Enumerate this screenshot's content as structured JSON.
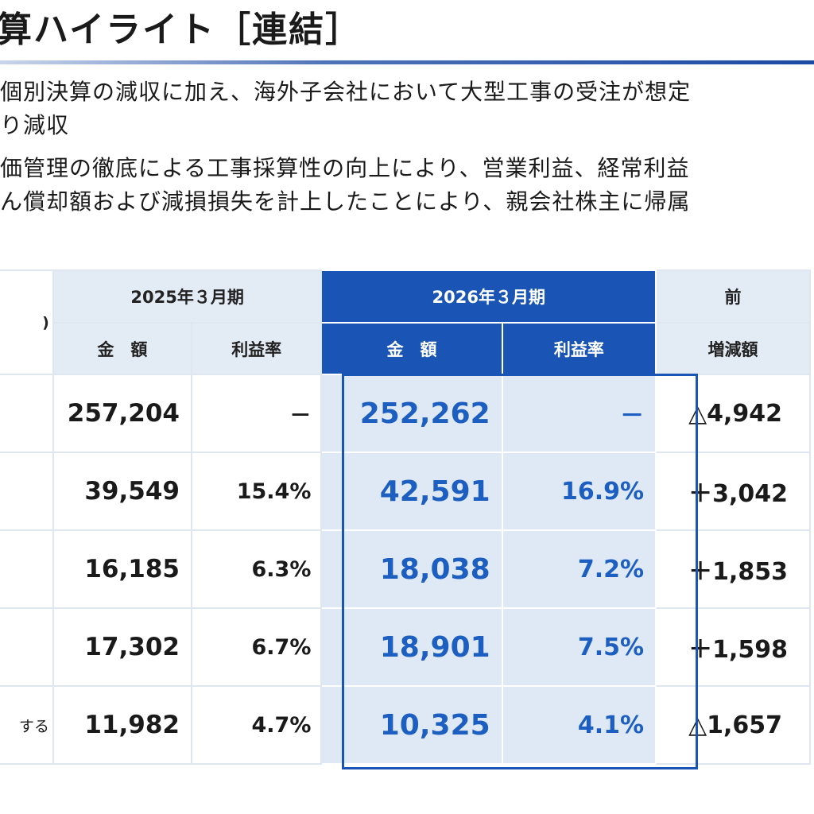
{
  "title": "算ハイライト［連結］",
  "bullets": [
    "個別決算の減収に加え、海外子会社において大型工事の受注が想定",
    "り減収",
    "価管理の徹底による工事採算性の向上により、営業利益、経常利益",
    "ん償却額および減損損失を計上したことにより、親会社株主に帰属"
  ],
  "table": {
    "headers": {
      "period_prev": "2025年３月期",
      "period_curr": "2026年３月期",
      "period_diff": "前",
      "amount": "金　額",
      "margin": "利益率",
      "amount_curr": "金　額",
      "margin_curr": "利益率",
      "change": "増減額",
      "row_label_fragment": ")"
    },
    "rows": [
      {
        "label": "",
        "prev_amount": "257,204",
        "prev_margin": "－",
        "curr_amount": "252,262",
        "curr_margin": "－",
        "change": "△4,942"
      },
      {
        "label": "",
        "prev_amount": "39,549",
        "prev_margin": "15.4%",
        "curr_amount": "42,591",
        "curr_margin": "16.9%",
        "change": "＋3,042"
      },
      {
        "label": "",
        "prev_amount": "16,185",
        "prev_margin": "6.3%",
        "curr_amount": "18,038",
        "curr_margin": "7.2%",
        "change": "＋1,853"
      },
      {
        "label": "",
        "prev_amount": "17,302",
        "prev_margin": "6.7%",
        "curr_amount": "18,901",
        "curr_margin": "7.5%",
        "change": "＋1,598"
      },
      {
        "label": "する",
        "prev_amount": "11,982",
        "prev_margin": "4.7%",
        "curr_amount": "10,325",
        "curr_margin": "4.1%",
        "change": "△1,657"
      }
    ]
  },
  "colors": {
    "accent_blue": "#1a55b5",
    "header_bg": "#e3ebf5",
    "highlight_bg": "#dfe9f6",
    "highlight_text": "#1d5fc0"
  }
}
